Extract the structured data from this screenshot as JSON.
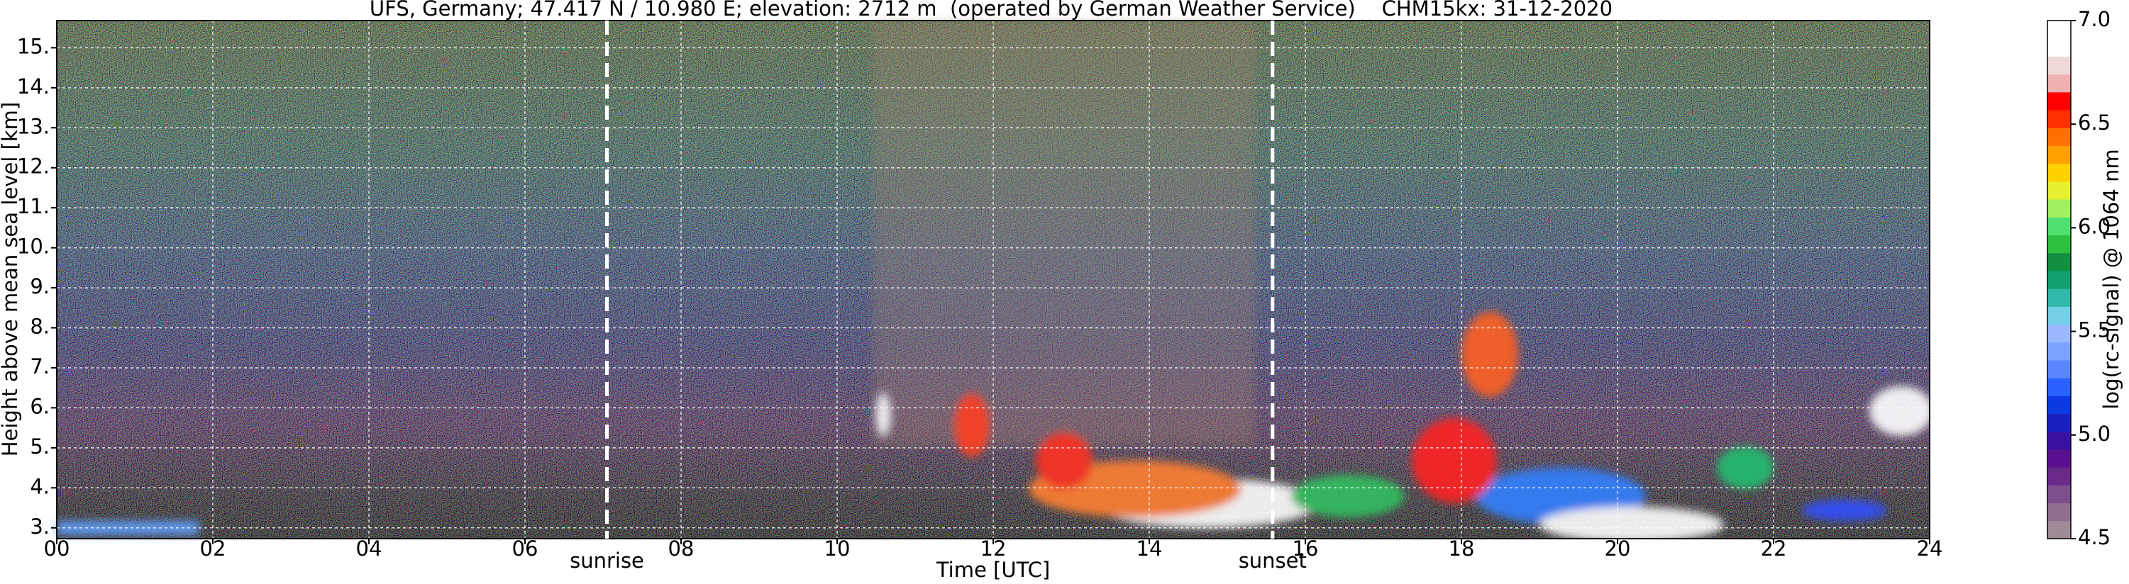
{
  "chart_data": {
    "type": "heatmap",
    "title": "UFS, Germany; 47.417 N / 10.980 E; elevation: 2712 m  (operated by German Weather Service)    CHM15kx: 31-12-2020",
    "xlabel": "Time [UTC]",
    "ylabel": "Height above mean sea level [km]",
    "xlim": [
      0,
      24
    ],
    "xticks": [
      {
        "value": 0,
        "label": "00"
      },
      {
        "value": 2,
        "label": "02"
      },
      {
        "value": 4,
        "label": "04"
      },
      {
        "value": 6,
        "label": "06"
      },
      {
        "value": 8,
        "label": "08"
      },
      10,
      12,
      14,
      16,
      18,
      20,
      22,
      24
    ],
    "ylim": [
      2.73,
      15.68
    ],
    "yticks": [
      {
        "value": 3,
        "label": "3."
      },
      {
        "value": 4,
        "label": "4."
      },
      {
        "value": 5,
        "label": "5."
      },
      {
        "value": 6,
        "label": "6."
      },
      {
        "value": 7,
        "label": "7."
      },
      {
        "value": 8,
        "label": "8."
      },
      {
        "value": 9,
        "label": "9."
      },
      {
        "value": 10,
        "label": "10."
      },
      {
        "value": 11,
        "label": "11."
      },
      {
        "value": 12,
        "label": "12."
      },
      {
        "value": 13,
        "label": "13."
      },
      {
        "value": 14,
        "label": "14."
      },
      {
        "value": 15,
        "label": "15."
      }
    ],
    "grid": true,
    "annotations": [
      {
        "text": "sunrise",
        "x": 7.05
      },
      {
        "text": "sunset",
        "x": 15.58
      }
    ],
    "colorbar": {
      "label": "log(rc-signal) @ 1064 nm",
      "lim": [
        4.5,
        7.0
      ],
      "ticks": [
        4.5,
        {
          "value": 5.0,
          "label": "5.0"
        },
        5.5,
        {
          "value": 6.0,
          "label": "6.0"
        },
        6.5,
        {
          "value": 7.0,
          "label": "7.0"
        }
      ],
      "colors": [
        "#a08a98",
        "#8e6f90",
        "#7d4f8c",
        "#6a2a8a",
        "#5a108e",
        "#3a10a0",
        "#1a20c0",
        "#0a3ae0",
        "#2a62ff",
        "#5a86ff",
        "#7ea2ff",
        "#9ab8ff",
        "#74d0e8",
        "#30b8a8",
        "#10a070",
        "#109040",
        "#30c040",
        "#50e070",
        "#a0f060",
        "#e8f030",
        "#ffd000",
        "#ffa000",
        "#ff7000",
        "#ff3000",
        "#ff0000",
        "#f0b0b0",
        "#f0d8d8",
        "#ffffff",
        "#ffffff"
      ]
    }
  }
}
